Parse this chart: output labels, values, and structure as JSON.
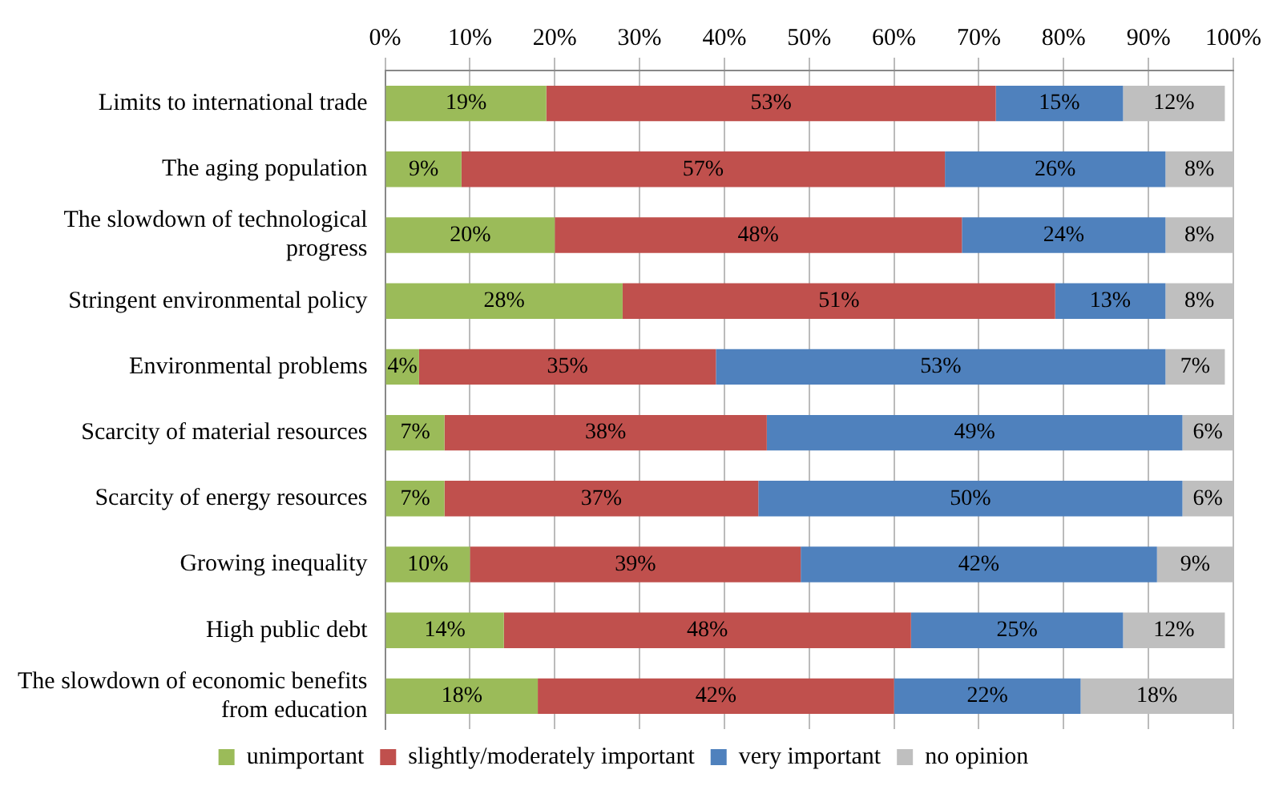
{
  "chart_data": {
    "type": "bar",
    "orientation": "horizontal",
    "stacked": true,
    "categories": [
      "Limits to international trade",
      "The aging population",
      "The slowdown of technological progress",
      "Stringent environmental policy",
      "Environmental problems",
      "Scarcity of material resources",
      "Scarcity of energy resources",
      "Growing inequality",
      "High public debt",
      "The slowdown of economic benefits from education"
    ],
    "series": [
      {
        "name": "unimportant",
        "color": "#9bbb59",
        "values": [
          19,
          9,
          20,
          28,
          4,
          7,
          7,
          10,
          14,
          18
        ],
        "value_labels": [
          "19%",
          "9%",
          "20%",
          "28%",
          "4%",
          "7%",
          "7%",
          "10%",
          "14%",
          "18%"
        ]
      },
      {
        "name": "slightly/moderately important",
        "color": "#c0504d",
        "values": [
          53,
          57,
          48,
          51,
          35,
          38,
          37,
          39,
          48,
          42
        ],
        "value_labels": [
          "53%",
          "57%",
          "48%",
          "51%",
          "35%",
          "38%",
          "37%",
          "39%",
          "48%",
          "42%"
        ]
      },
      {
        "name": "very important",
        "color": "#4f81bd",
        "values": [
          15,
          26,
          24,
          13,
          53,
          49,
          50,
          42,
          25,
          22
        ],
        "value_labels": [
          "15%",
          "26%",
          "24%",
          "13%",
          "53%",
          "49%",
          "50%",
          "42%",
          "25%",
          "22%"
        ]
      },
      {
        "name": "no opinion",
        "color": "#bfbfbf",
        "values": [
          12,
          8,
          8,
          8,
          7,
          6,
          6,
          9,
          12,
          18
        ],
        "value_labels": [
          "12%",
          "8%",
          "8%",
          "8%",
          "7%",
          "6%",
          "6%",
          "9%",
          "12%",
          "18%"
        ]
      }
    ],
    "xlim": [
      0,
      100
    ],
    "xticks": [
      {
        "value": 0,
        "label": "0%"
      },
      {
        "value": 10,
        "label": "10%"
      },
      {
        "value": 20,
        "label": "20%"
      },
      {
        "value": 30,
        "label": "30%"
      },
      {
        "value": 40,
        "label": "40%"
      },
      {
        "value": 50,
        "label": "50%"
      },
      {
        "value": 60,
        "label": "60%"
      },
      {
        "value": 70,
        "label": "70%"
      },
      {
        "value": 80,
        "label": "80%"
      },
      {
        "value": 90,
        "label": "90%"
      },
      {
        "value": 100,
        "label": "100%"
      }
    ],
    "grid": "x",
    "legend": "bottom"
  }
}
